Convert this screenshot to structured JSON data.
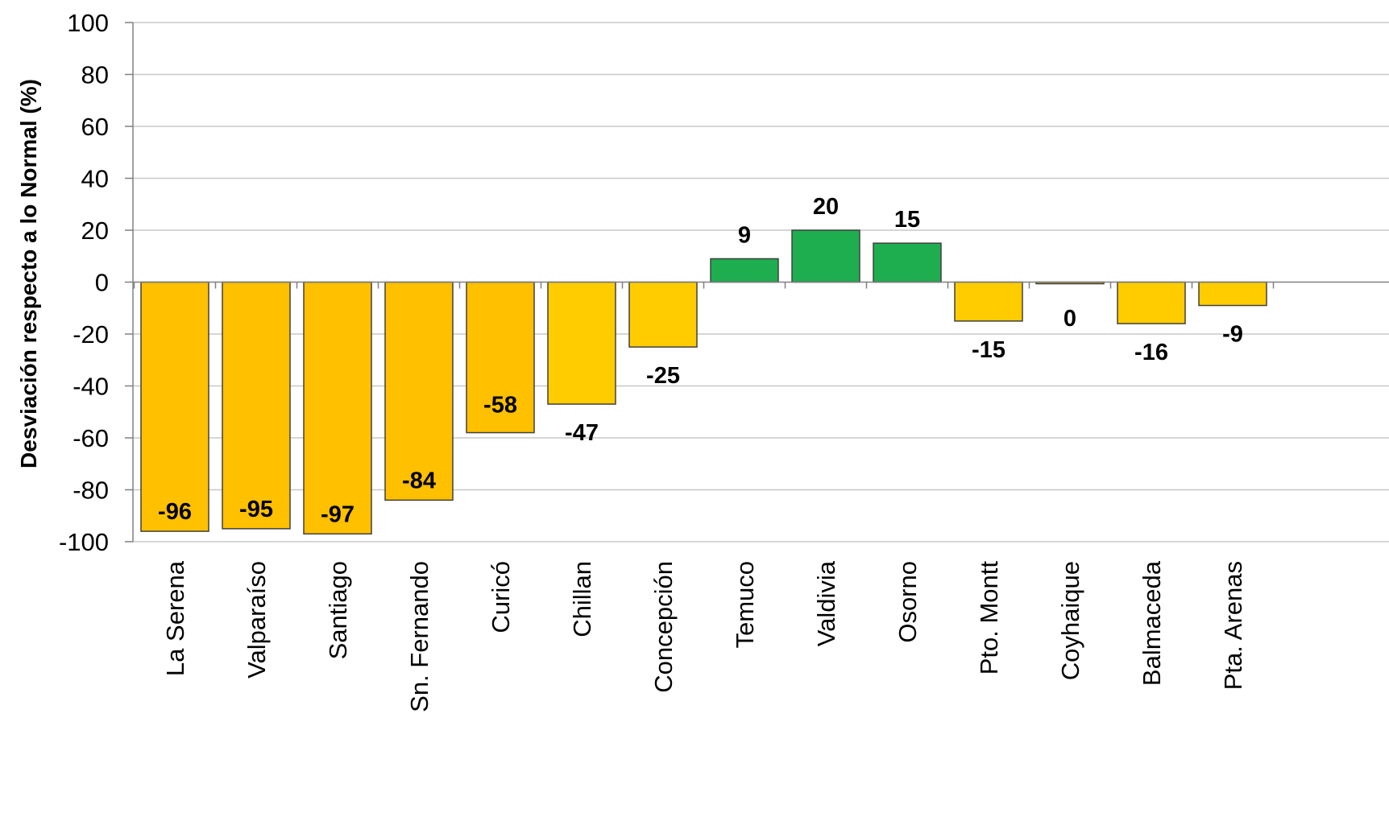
{
  "chart_data": {
    "type": "bar",
    "title": "",
    "xlabel": "",
    "ylabel": "Desviación respecto a lo Normal (%)",
    "ylim": [
      -100,
      100
    ],
    "yticks": [
      100,
      80,
      60,
      40,
      20,
      0,
      -20,
      -40,
      -60,
      -80,
      -100
    ],
    "grid": true,
    "categories": [
      "La Serena",
      "Valparaíso",
      "Santiago",
      "Sn. Fernando",
      "Curicó",
      "Chillan",
      "Concepción",
      "Temuco",
      "Valdivia",
      "Osorno",
      "Pto. Montt",
      "Coyhaique",
      "Balmaceda",
      "Pta. Arenas"
    ],
    "values": [
      -96,
      -95,
      -97,
      -84,
      -58,
      -47,
      -25,
      9,
      20,
      15,
      -15,
      0,
      -16,
      -9
    ],
    "data_labels": [
      "-96",
      "-95",
      "-97",
      "-84",
      "-58",
      "-47",
      "-25",
      "9",
      "20",
      "15",
      "-15",
      "0",
      "-16",
      "-9"
    ],
    "colors": {
      "negative_dark": "#FFC000",
      "negative_light": "#FFCC00",
      "positive": "#1EAE50",
      "outline": "#404040",
      "grid": "#C8C8C8",
      "axis": "#808080",
      "text": "#000000"
    }
  }
}
